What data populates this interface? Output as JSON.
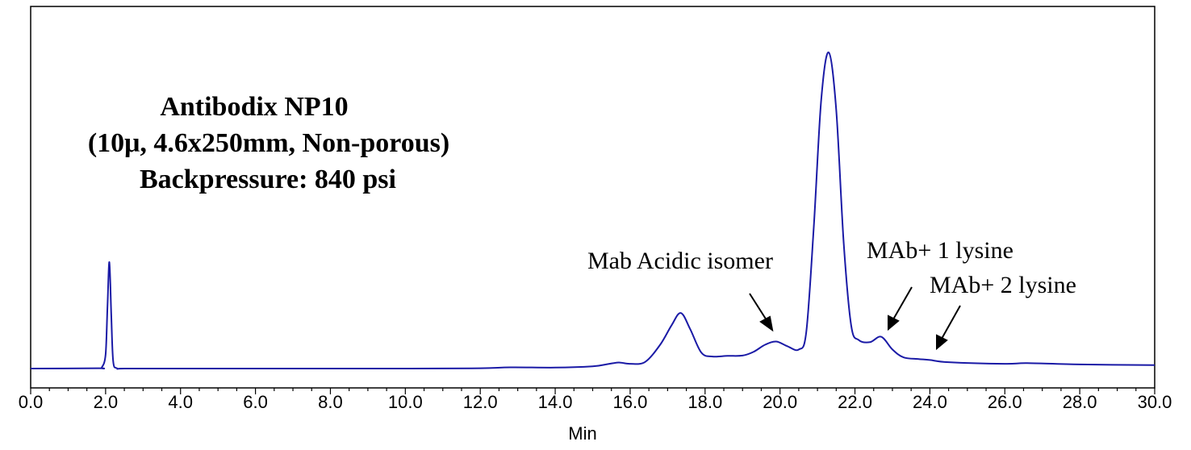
{
  "chart_data": {
    "type": "line",
    "xlabel": "Min",
    "ylabel": "",
    "xlim": [
      0.0,
      30.0
    ],
    "ylim": [
      0,
      100
    ],
    "grid": false,
    "x_ticks": [
      "0.0",
      "2.0",
      "4.0",
      "6.0",
      "8.0",
      "10.0",
      "12.0",
      "14.0",
      "16.0",
      "18.0",
      "20.0",
      "22.0",
      "24.0",
      "26.0",
      "28.0",
      "30.0"
    ],
    "info_text": [
      "Antibodix NP10",
      "(10μ, 4.6x250mm, Non-porous)",
      "Backpressure: 840 psi"
    ],
    "series": [
      {
        "color": "#1a1aa6",
        "x": [
          0.0,
          1.8,
          1.9,
          2.0,
          2.05,
          2.1,
          2.15,
          2.2,
          2.3,
          2.5,
          4.0,
          10.0,
          12.0,
          12.8,
          14.0,
          15.0,
          15.4,
          15.7,
          16.0,
          16.4,
          16.8,
          17.1,
          17.35,
          17.6,
          17.9,
          18.2,
          18.6,
          19.0,
          19.3,
          19.6,
          19.9,
          20.2,
          20.5,
          20.7,
          20.9,
          21.1,
          21.3,
          21.5,
          21.7,
          21.9,
          22.1,
          22.4,
          22.7,
          23.0,
          23.3,
          23.7,
          24.0,
          24.5,
          26.0,
          26.6,
          28.0,
          30.0
        ],
        "y": [
          0.5,
          0.6,
          0.9,
          5.0,
          20.0,
          34.0,
          18.0,
          3.0,
          0.6,
          0.5,
          0.5,
          0.5,
          0.6,
          0.9,
          0.8,
          1.2,
          1.9,
          2.4,
          2.0,
          2.6,
          8.0,
          14.0,
          18.0,
          13.0,
          5.5,
          4.3,
          4.5,
          4.6,
          5.8,
          8.0,
          9.0,
          7.5,
          6.5,
          12.0,
          45.0,
          85.0,
          100.0,
          82.0,
          40.0,
          14.0,
          9.5,
          8.8,
          10.5,
          6.5,
          4.0,
          3.5,
          3.2,
          2.5,
          2.0,
          2.2,
          1.8,
          1.6
        ]
      }
    ],
    "annotations": [
      {
        "text": "Mab Acidic isomer",
        "points_to_x": 19.9
      },
      {
        "text": "MAb+ 1 lysine",
        "points_to_x": 22.7
      },
      {
        "text": "MAb+ 2 lysine",
        "points_to_x": 24.0
      }
    ]
  }
}
